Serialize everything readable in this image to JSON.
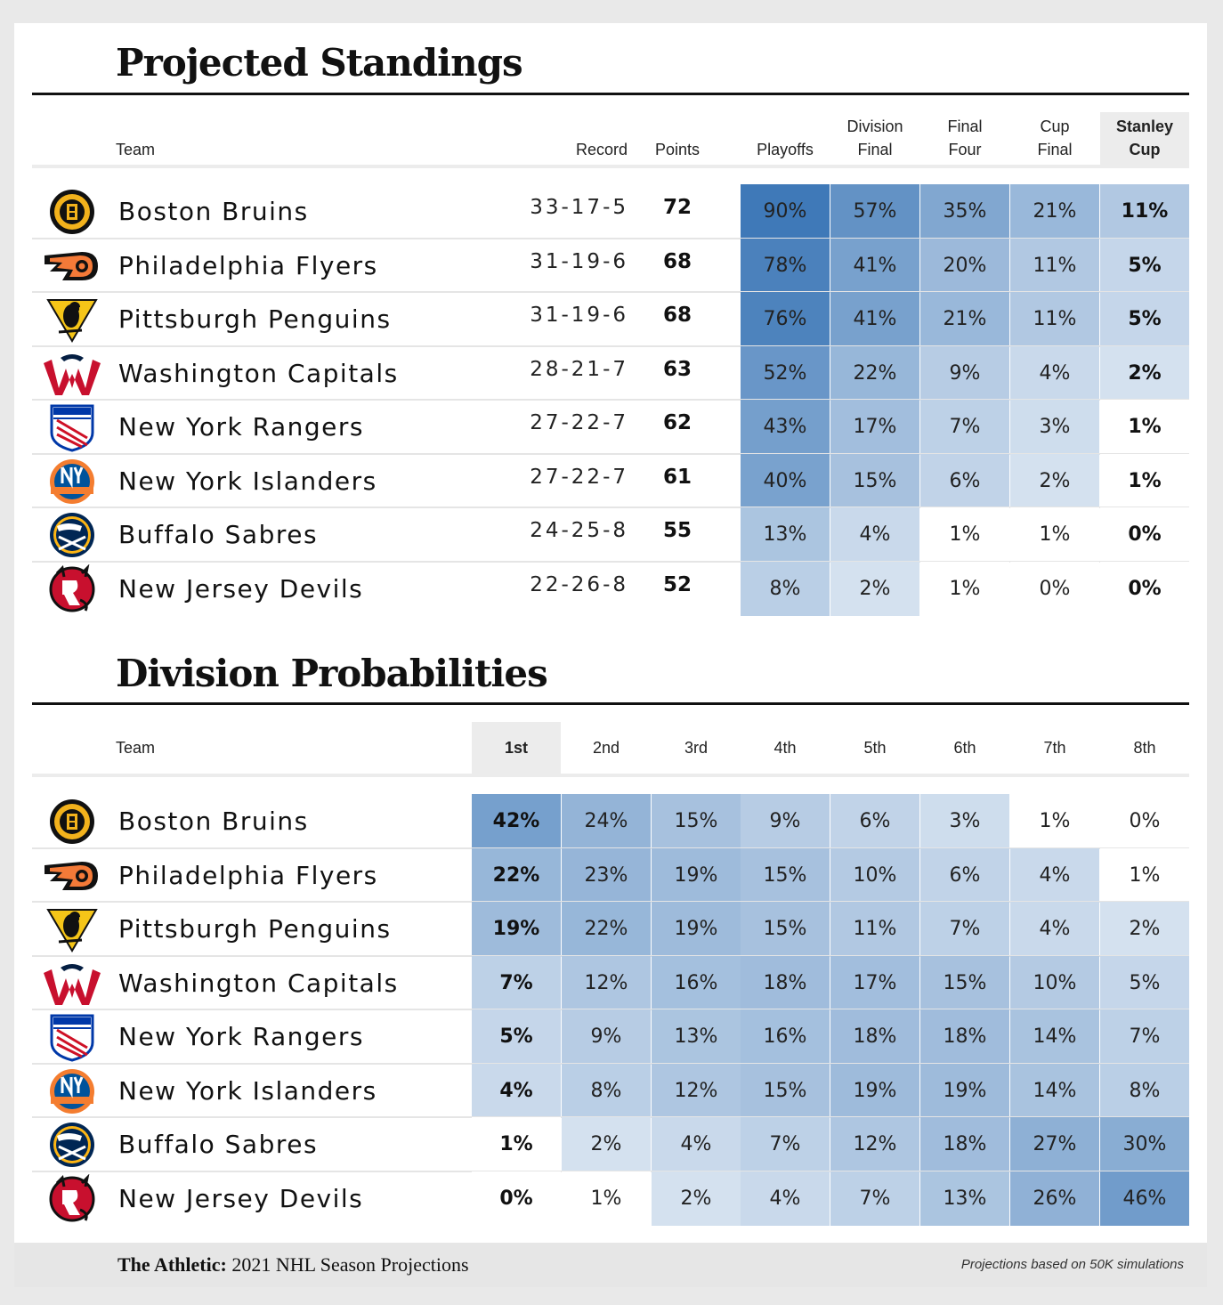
{
  "footer": {
    "brand": "The Athletic:",
    "subtitle": "2021 NHL Season Projections",
    "note": "Projections based on 50K simulations"
  },
  "logos": {
    "Boston Bruins": "bruins-logo",
    "Philadelphia Flyers": "flyers-logo",
    "Pittsburgh Penguins": "penguins-logo",
    "Washington Capitals": "capitals-logo",
    "New York Rangers": "rangers-logo",
    "New York Islanders": "islanders-logo",
    "Buffalo Sabres": "sabres-logo",
    "New Jersey Devils": "devils-logo"
  },
  "colors": {
    "heat_max": "#3f79b8",
    "heat_min": "#eef3f9",
    "highlight_header": "#ececec"
  },
  "chart_data": [
    {
      "type": "table",
      "title": "Projected Standings",
      "columns": [
        "Team",
        "Record",
        "Points",
        "Playoffs",
        "Division Final",
        "Final Four",
        "Cup Final",
        "Stanley Cup"
      ],
      "column_headers": {
        "team": "Team",
        "record": "Record",
        "points": "Points",
        "prob": [
          [
            "Playoffs"
          ],
          [
            "Division",
            "Final"
          ],
          [
            "Final",
            "Four"
          ],
          [
            "Cup",
            "Final"
          ],
          [
            "Stanley",
            "Cup"
          ]
        ]
      },
      "highlight_column": "Stanley Cup",
      "rows": [
        {
          "team": "Boston Bruins",
          "record": "33-17-5",
          "points": 72,
          "probs": [
            90,
            57,
            35,
            21,
            11
          ]
        },
        {
          "team": "Philadelphia Flyers",
          "record": "31-19-6",
          "points": 68,
          "probs": [
            78,
            41,
            20,
            11,
            5
          ]
        },
        {
          "team": "Pittsburgh Penguins",
          "record": "31-19-6",
          "points": 68,
          "probs": [
            76,
            41,
            21,
            11,
            5
          ]
        },
        {
          "team": "Washington Capitals",
          "record": "28-21-7",
          "points": 63,
          "probs": [
            52,
            22,
            9,
            4,
            2
          ]
        },
        {
          "team": "New York Rangers",
          "record": "27-22-7",
          "points": 62,
          "probs": [
            43,
            17,
            7,
            3,
            1
          ]
        },
        {
          "team": "New York Islanders",
          "record": "27-22-7",
          "points": 61,
          "probs": [
            40,
            15,
            6,
            2,
            1
          ]
        },
        {
          "team": "Buffalo Sabres",
          "record": "24-25-8",
          "points": 55,
          "probs": [
            13,
            4,
            1,
            1,
            0
          ]
        },
        {
          "team": "New Jersey Devils",
          "record": "22-26-8",
          "points": 52,
          "probs": [
            8,
            2,
            1,
            0,
            0
          ]
        }
      ]
    },
    {
      "type": "table",
      "title": "Division Probabilities",
      "columns": [
        "Team",
        "1st",
        "2nd",
        "3rd",
        "4th",
        "5th",
        "6th",
        "7th",
        "8th"
      ],
      "column_headers": {
        "team": "Team",
        "prob": [
          [
            "1st"
          ],
          [
            "2nd"
          ],
          [
            "3rd"
          ],
          [
            "4th"
          ],
          [
            "5th"
          ],
          [
            "6th"
          ],
          [
            "7th"
          ],
          [
            "8th"
          ]
        ]
      },
      "highlight_column": "1st",
      "rows": [
        {
          "team": "Boston Bruins",
          "probs": [
            42,
            24,
            15,
            9,
            6,
            3,
            1,
            0
          ]
        },
        {
          "team": "Philadelphia Flyers",
          "probs": [
            22,
            23,
            19,
            15,
            10,
            6,
            4,
            1
          ]
        },
        {
          "team": "Pittsburgh Penguins",
          "probs": [
            19,
            22,
            19,
            15,
            11,
            7,
            4,
            2
          ]
        },
        {
          "team": "Washington Capitals",
          "probs": [
            7,
            12,
            16,
            18,
            17,
            15,
            10,
            5
          ]
        },
        {
          "team": "New York Rangers",
          "probs": [
            5,
            9,
            13,
            16,
            18,
            18,
            14,
            7
          ]
        },
        {
          "team": "New York Islanders",
          "probs": [
            4,
            8,
            12,
            15,
            19,
            19,
            14,
            8
          ]
        },
        {
          "team": "Buffalo Sabres",
          "probs": [
            1,
            2,
            4,
            7,
            12,
            18,
            27,
            30
          ]
        },
        {
          "team": "New Jersey Devils",
          "probs": [
            0,
            1,
            2,
            4,
            7,
            13,
            26,
            46
          ]
        }
      ]
    }
  ]
}
